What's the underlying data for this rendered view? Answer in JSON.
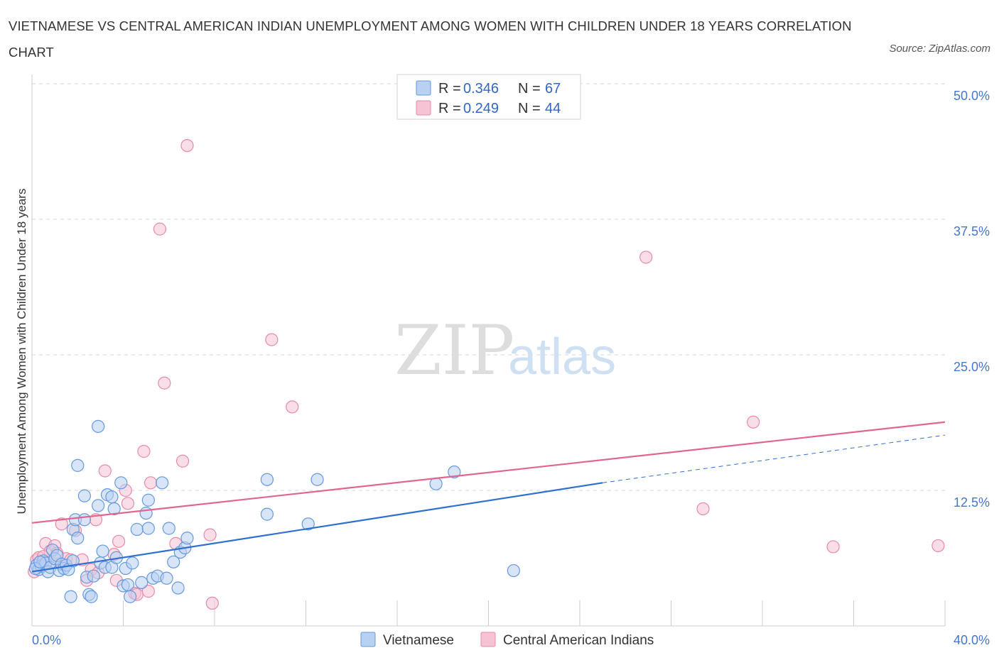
{
  "title": "VIETNAMESE VS CENTRAL AMERICAN INDIAN UNEMPLOYMENT AMONG WOMEN WITH CHILDREN UNDER 18 YEARS CORRELATION CHART",
  "source": "Source: ZipAtlas.com",
  "watermark": {
    "zip": "ZIP",
    "atlas": "atlas"
  },
  "colors": {
    "vietnamese": "#6699dd",
    "vietnamese_fill": "#b8d0f2",
    "vietnamese_line": "#2f6fcf",
    "central": "#e88aa8",
    "central_fill": "#f6c3d4",
    "central_line": "#e06690",
    "tick": "#4477cc",
    "grid": "#d6d6d6"
  },
  "legend": {
    "row1": {
      "r_label": "R = ",
      "r_value": "0.346",
      "n_label": "N = ",
      "n_value": "67"
    },
    "row2": {
      "r_label": "R = ",
      "r_value": "0.249",
      "n_label": "N = ",
      "n_value": "44"
    }
  },
  "chart_data": {
    "type": "scatter",
    "title": "VIETNAMESE VS CENTRAL AMERICAN INDIAN UNEMPLOYMENT AMONG WOMEN WITH CHILDREN UNDER 18 YEARS CORRELATION CHART",
    "xlabel": "",
    "ylabel": "Unemployment Among Women with Children Under 18 years",
    "xlim": [
      0,
      40
    ],
    "ylim": [
      0,
      50
    ],
    "x_tick_labels": [
      "0.0%",
      "40.0%"
    ],
    "y_tick_labels": [
      "12.5%",
      "25.0%",
      "37.5%",
      "50.0%"
    ],
    "y_ticks": [
      12.5,
      25.0,
      37.5,
      50.0
    ],
    "grid": true,
    "legend_position": "top-center",
    "series": [
      {
        "name": "Vietnamese",
        "color": "#6699dd",
        "r": 0.346,
        "n": 67,
        "trend": {
          "x0": 0.0,
          "y0": 5.0,
          "x1": 25.0,
          "y1": 13.2,
          "dash_to_x": 40.0,
          "dash_to_y": 17.6
        },
        "points": [
          [
            0.2,
            5.6
          ],
          [
            0.3,
            5.2
          ],
          [
            0.4,
            5.5
          ],
          [
            0.5,
            6.0
          ],
          [
            0.6,
            5.8
          ],
          [
            0.7,
            5.0
          ],
          [
            0.8,
            5.4
          ],
          [
            0.9,
            7.0
          ],
          [
            1.0,
            6.2
          ],
          [
            1.1,
            6.5
          ],
          [
            1.2,
            5.1
          ],
          [
            1.3,
            5.7
          ],
          [
            1.4,
            5.3
          ],
          [
            1.5,
            5.6
          ],
          [
            1.6,
            5.2
          ],
          [
            1.7,
            2.7
          ],
          [
            1.8,
            6.0
          ],
          [
            1.8,
            8.9
          ],
          [
            1.9,
            9.8
          ],
          [
            2.0,
            8.1
          ],
          [
            2.0,
            14.8
          ],
          [
            2.3,
            9.8
          ],
          [
            2.3,
            12.0
          ],
          [
            2.4,
            4.5
          ],
          [
            2.5,
            2.9
          ],
          [
            2.6,
            2.7
          ],
          [
            2.7,
            4.6
          ],
          [
            2.9,
            18.4
          ],
          [
            2.9,
            11.1
          ],
          [
            3.0,
            5.8
          ],
          [
            3.1,
            6.9
          ],
          [
            3.2,
            5.4
          ],
          [
            3.3,
            12.1
          ],
          [
            3.5,
            11.9
          ],
          [
            3.5,
            5.4
          ],
          [
            3.6,
            10.8
          ],
          [
            3.7,
            6.3
          ],
          [
            3.9,
            13.2
          ],
          [
            4.0,
            3.7
          ],
          [
            4.1,
            5.3
          ],
          [
            4.2,
            3.8
          ],
          [
            4.3,
            2.7
          ],
          [
            4.4,
            5.8
          ],
          [
            4.6,
            8.9
          ],
          [
            4.8,
            4.0
          ],
          [
            5.0,
            10.4
          ],
          [
            5.1,
            11.6
          ],
          [
            5.1,
            9.0
          ],
          [
            5.3,
            4.4
          ],
          [
            5.5,
            4.6
          ],
          [
            5.7,
            13.2
          ],
          [
            5.9,
            4.4
          ],
          [
            6.0,
            9.0
          ],
          [
            6.2,
            5.9
          ],
          [
            6.4,
            3.5
          ],
          [
            6.5,
            6.8
          ],
          [
            6.7,
            7.2
          ],
          [
            6.8,
            8.1
          ],
          [
            10.3,
            13.5
          ],
          [
            10.3,
            10.3
          ],
          [
            12.5,
            13.5
          ],
          [
            12.1,
            9.4
          ],
          [
            17.7,
            13.1
          ],
          [
            18.5,
            14.2
          ],
          [
            21.1,
            5.1
          ],
          [
            0.15,
            5.3
          ],
          [
            0.35,
            5.9
          ]
        ]
      },
      {
        "name": "Central American Indians",
        "color": "#e88aa8",
        "r": 0.249,
        "n": 44,
        "trend": {
          "x0": 0.0,
          "y0": 9.5,
          "x1": 40.0,
          "y1": 18.8
        },
        "points": [
          [
            0.1,
            5.0
          ],
          [
            0.2,
            6.1
          ],
          [
            0.3,
            6.3
          ],
          [
            0.4,
            5.6
          ],
          [
            0.6,
            7.6
          ],
          [
            0.8,
            6.9
          ],
          [
            0.9,
            5.9
          ],
          [
            1.0,
            7.4
          ],
          [
            1.1,
            6.7
          ],
          [
            1.3,
            9.4
          ],
          [
            1.5,
            6.2
          ],
          [
            1.7,
            6.1
          ],
          [
            1.9,
            8.8
          ],
          [
            2.2,
            6.1
          ],
          [
            2.4,
            4.2
          ],
          [
            2.6,
            5.2
          ],
          [
            2.8,
            9.8
          ],
          [
            2.9,
            4.9
          ],
          [
            3.2,
            14.3
          ],
          [
            3.6,
            6.6
          ],
          [
            3.7,
            4.2
          ],
          [
            3.8,
            7.8
          ],
          [
            4.1,
            12.5
          ],
          [
            4.2,
            11.3
          ],
          [
            4.5,
            3.0
          ],
          [
            4.6,
            2.9
          ],
          [
            4.9,
            16.1
          ],
          [
            5.2,
            13.2
          ],
          [
            5.1,
            3.2
          ],
          [
            5.6,
            36.6
          ],
          [
            5.8,
            22.4
          ],
          [
            6.3,
            7.6
          ],
          [
            6.6,
            15.2
          ],
          [
            6.8,
            44.3
          ],
          [
            7.8,
            8.4
          ],
          [
            7.9,
            2.1
          ],
          [
            10.5,
            26.4
          ],
          [
            11.4,
            20.2
          ],
          [
            26.9,
            34.0
          ],
          [
            29.4,
            10.8
          ],
          [
            31.6,
            18.8
          ],
          [
            35.1,
            7.3
          ],
          [
            39.7,
            7.4
          ],
          [
            0.5,
            6.4
          ]
        ]
      }
    ]
  }
}
